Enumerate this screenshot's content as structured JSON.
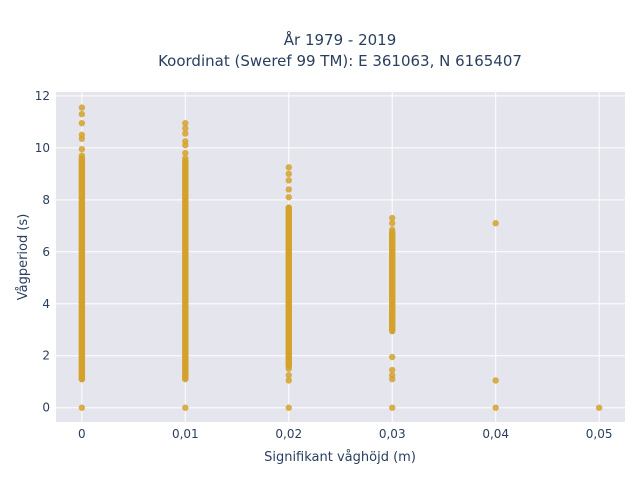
{
  "chart_data": {
    "type": "scatter",
    "title_lines": [
      "År 1979 - 2019",
      "Koordinat (Sweref 99 TM): E 361063, N 6165407"
    ],
    "xlabel": "Signifikant våghöjd (m)",
    "ylabel": "Vågperiod (s)",
    "xlim": [
      -0.0025,
      0.0525
    ],
    "ylim": [
      -0.55,
      12.15
    ],
    "x_ticks": [
      0,
      0.01,
      0.02,
      0.03,
      0.04,
      0.05
    ],
    "x_tick_labels": [
      "0",
      "0,01",
      "0,02",
      "0,03",
      "0,04",
      "0,05"
    ],
    "y_ticks": [
      0,
      2,
      4,
      6,
      8,
      10,
      12
    ],
    "y_tick_labels": [
      "0",
      "2",
      "4",
      "6",
      "8",
      "10",
      "12"
    ],
    "grid": true,
    "marker_color": "#d4a22a",
    "plot_background": "#e5e5ee",
    "series": [
      {
        "values": [
          {
            "x": 0,
            "y": 11.55
          },
          {
            "x": 0,
            "y": 11.3
          },
          {
            "x": 0,
            "y": 10.95
          },
          {
            "x": 0,
            "y": 10.5
          },
          {
            "x": 0,
            "y": 10.35
          },
          {
            "x": 0,
            "y": 9.95
          },
          {
            "x": 0,
            "y": 9.7
          },
          {
            "x": 0,
            "y": 1.1
          },
          {
            "x": 0,
            "y": 0
          },
          {
            "x": 0,
            "y": 6.1
          },
          {
            "x": 0.01,
            "y": 10.95
          },
          {
            "x": 0.01,
            "y": 10.75
          },
          {
            "x": 0.01,
            "y": 10.55
          },
          {
            "x": 0.01,
            "y": 10.25
          },
          {
            "x": 0.01,
            "y": 10.1
          },
          {
            "x": 0.01,
            "y": 9.8
          },
          {
            "x": 0.01,
            "y": 9.6
          },
          {
            "x": 0.01,
            "y": 1.1
          },
          {
            "x": 0.01,
            "y": 0
          },
          {
            "x": 0.02,
            "y": 9.25
          },
          {
            "x": 0.02,
            "y": 9.0
          },
          {
            "x": 0.02,
            "y": 8.75
          },
          {
            "x": 0.02,
            "y": 8.4
          },
          {
            "x": 0.02,
            "y": 8.1
          },
          {
            "x": 0.02,
            "y": 1.5
          },
          {
            "x": 0.02,
            "y": 1.25
          },
          {
            "x": 0.02,
            "y": 1.05
          },
          {
            "x": 0.02,
            "y": 0
          },
          {
            "x": 0.03,
            "y": 7.3
          },
          {
            "x": 0.03,
            "y": 7.1
          },
          {
            "x": 0.03,
            "y": 6.85
          },
          {
            "x": 0.03,
            "y": 1.95
          },
          {
            "x": 0.03,
            "y": 1.45
          },
          {
            "x": 0.03,
            "y": 1.25
          },
          {
            "x": 0.03,
            "y": 1.1
          },
          {
            "x": 0.03,
            "y": 0
          },
          {
            "x": 0.04,
            "y": 7.1
          },
          {
            "x": 0.04,
            "y": 1.05
          },
          {
            "x": 0.04,
            "y": 0
          },
          {
            "x": 0.05,
            "y": 0
          }
        ],
        "dense_ranges": [
          {
            "x": 0,
            "y_min": 1.1,
            "y_max": 9.6
          },
          {
            "x": 0.01,
            "y_min": 1.15,
            "y_max": 9.5
          },
          {
            "x": 0.02,
            "y_min": 1.6,
            "y_max": 7.7
          },
          {
            "x": 0.03,
            "y_min": 2.95,
            "y_max": 6.75
          }
        ]
      }
    ]
  }
}
